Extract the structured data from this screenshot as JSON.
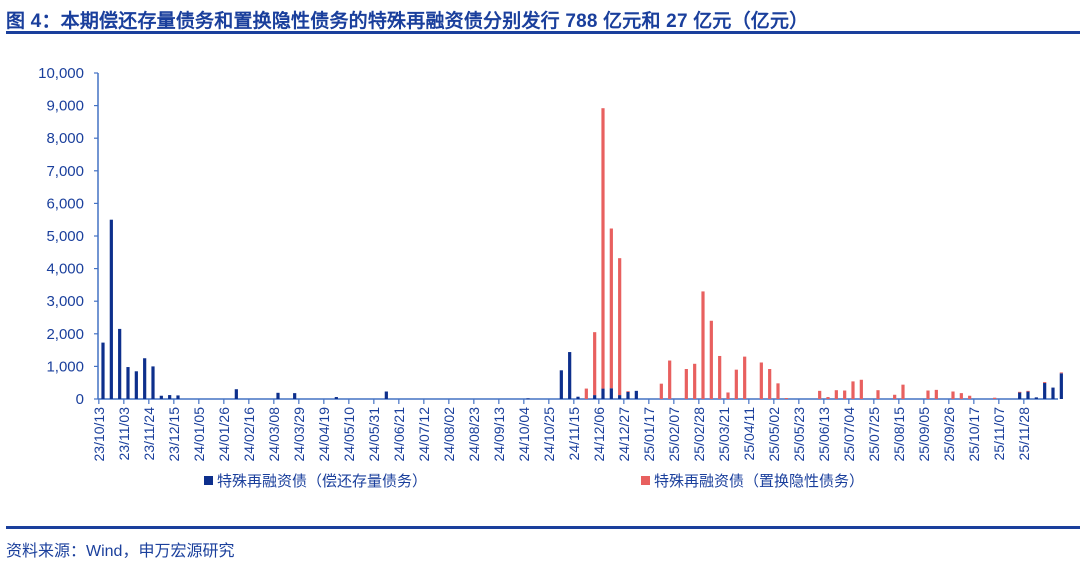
{
  "title": "图 4：本期偿还存量债务和置换隐性债务的特殊再融资债分别发行 788 亿元和 27 亿元（亿元）",
  "source": "资料来源：Wind，申万宏源研究",
  "colors": {
    "series1": "#0d2f8c",
    "series2": "#e8605f",
    "axis": "#4472c4",
    "text": "#1a3f9c"
  },
  "chart_data": {
    "type": "bar",
    "stacked": true,
    "title": "本期偿还存量债务和置换隐性债务的特殊再融资债分别发行 788 亿元和 27 亿元（亿元）",
    "xlabel": "",
    "ylabel": "亿元",
    "ylim": [
      0,
      10000
    ],
    "yticks": [
      0,
      1000,
      2000,
      3000,
      4000,
      5000,
      6000,
      7000,
      8000,
      9000,
      10000
    ],
    "ytick_labels": [
      "0",
      "1,000",
      "2,000",
      "3,000",
      "4,000",
      "5,000",
      "6,000",
      "7,000",
      "8,000",
      "9,000",
      "10,000"
    ],
    "grid": false,
    "legend_position": "bottom",
    "x_tick_labels": [
      "23/10/13",
      "23/11/03",
      "23/11/24",
      "23/12/15",
      "24/01/05",
      "24/01/26",
      "24/02/16",
      "24/03/08",
      "24/03/29",
      "24/04/19",
      "24/05/10",
      "24/05/31",
      "24/06/21",
      "24/07/12",
      "24/08/02",
      "24/08/23",
      "24/09/13",
      "24/10/04",
      "24/10/25",
      "24/11/15",
      "24/12/06",
      "24/12/27",
      "25/01/17",
      "25/02/07",
      "25/02/28",
      "25/03/21",
      "25/04/11",
      "25/05/02",
      "25/05/23",
      "25/06/13",
      "25/07/04",
      "25/07/25",
      "25/08/15",
      "25/09/05",
      "25/09/26",
      "25/10/17",
      "25/11/07",
      "25/11/28"
    ],
    "x_tick_interval_weeks": 3,
    "num_weeks": 115,
    "series": [
      {
        "name": "特殊再融资债（偿还存量债务）",
        "color": "#0d2f8c",
        "points": [
          {
            "week": 0,
            "value": 1730
          },
          {
            "week": 1,
            "value": 5500
          },
          {
            "week": 2,
            "value": 2150
          },
          {
            "week": 3,
            "value": 980
          },
          {
            "week": 4,
            "value": 850
          },
          {
            "week": 5,
            "value": 1250
          },
          {
            "week": 6,
            "value": 1000
          },
          {
            "week": 7,
            "value": 100
          },
          {
            "week": 8,
            "value": 120
          },
          {
            "week": 9,
            "value": 110
          },
          {
            "week": 16,
            "value": 300
          },
          {
            "week": 21,
            "value": 190
          },
          {
            "week": 23,
            "value": 180
          },
          {
            "week": 28,
            "value": 60
          },
          {
            "week": 34,
            "value": 230
          },
          {
            "week": 51,
            "value": 20
          },
          {
            "week": 55,
            "value": 880
          },
          {
            "week": 56,
            "value": 1440
          },
          {
            "week": 57,
            "value": 70
          },
          {
            "week": 59,
            "value": 120
          },
          {
            "week": 60,
            "value": 320
          },
          {
            "week": 61,
            "value": 330
          },
          {
            "week": 62,
            "value": 120
          },
          {
            "week": 63,
            "value": 220
          },
          {
            "week": 64,
            "value": 250
          },
          {
            "week": 110,
            "value": 210
          },
          {
            "week": 111,
            "value": 230
          },
          {
            "week": 112,
            "value": 50
          },
          {
            "week": 113,
            "value": 490
          },
          {
            "week": 114,
            "value": 350
          },
          {
            "week": 115,
            "value": 788
          }
        ]
      },
      {
        "name": "特殊再融资债（置换隐性债务）",
        "color": "#e8605f",
        "points": [
          {
            "week": 58,
            "value": 320
          },
          {
            "week": 59,
            "value": 1930
          },
          {
            "week": 60,
            "value": 8600
          },
          {
            "week": 61,
            "value": 4900
          },
          {
            "week": 62,
            "value": 4200
          },
          {
            "week": 63,
            "value": 20
          },
          {
            "week": 67,
            "value": 470
          },
          {
            "week": 68,
            "value": 1180
          },
          {
            "week": 70,
            "value": 920
          },
          {
            "week": 71,
            "value": 1080
          },
          {
            "week": 72,
            "value": 3300
          },
          {
            "week": 73,
            "value": 2400
          },
          {
            "week": 74,
            "value": 1320
          },
          {
            "week": 75,
            "value": 200
          },
          {
            "week": 76,
            "value": 900
          },
          {
            "week": 77,
            "value": 1300
          },
          {
            "week": 79,
            "value": 1120
          },
          {
            "week": 80,
            "value": 920
          },
          {
            "week": 81,
            "value": 480
          },
          {
            "week": 82,
            "value": 30
          },
          {
            "week": 86,
            "value": 250
          },
          {
            "week": 87,
            "value": 60
          },
          {
            "week": 88,
            "value": 270
          },
          {
            "week": 89,
            "value": 260
          },
          {
            "week": 90,
            "value": 540
          },
          {
            "week": 91,
            "value": 590
          },
          {
            "week": 93,
            "value": 270
          },
          {
            "week": 95,
            "value": 130
          },
          {
            "week": 96,
            "value": 440
          },
          {
            "week": 99,
            "value": 260
          },
          {
            "week": 100,
            "value": 280
          },
          {
            "week": 102,
            "value": 230
          },
          {
            "week": 103,
            "value": 180
          },
          {
            "week": 104,
            "value": 100
          },
          {
            "week": 107,
            "value": 40
          },
          {
            "week": 110,
            "value": 10
          },
          {
            "week": 111,
            "value": 20
          },
          {
            "week": 113,
            "value": 30
          },
          {
            "week": 115,
            "value": 27
          }
        ]
      }
    ]
  }
}
